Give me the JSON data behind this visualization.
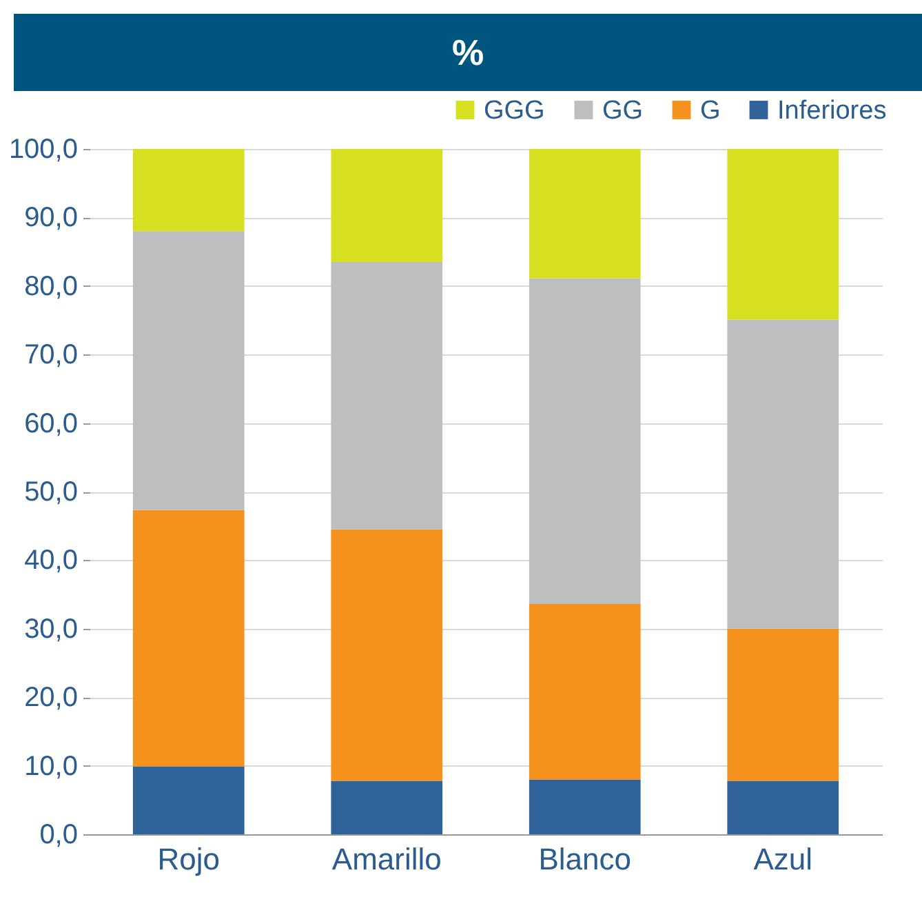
{
  "chart_data": {
    "type": "bar",
    "title": "%",
    "stacked": true,
    "categories": [
      "Rojo",
      "Amarillo",
      "Blanco",
      "Azul"
    ],
    "series": [
      {
        "name": "Inferiores",
        "color": "#2f6299",
        "values": [
          9.9,
          7.8,
          8.0,
          7.8
        ]
      },
      {
        "name": "G",
        "color": "#f5921e",
        "values": [
          37.4,
          36.7,
          25.6,
          22.2
        ]
      },
      {
        "name": "GG",
        "color": "#bdbec0",
        "values": [
          40.7,
          39.0,
          47.5,
          45.1
        ]
      },
      {
        "name": "GGG",
        "color": "#d7df21",
        "values": [
          12.0,
          16.5,
          18.9,
          24.9
        ]
      }
    ],
    "ylim": [
      0,
      100
    ],
    "yticks": [
      {
        "value": 0,
        "label": "0,0"
      },
      {
        "value": 10,
        "label": "10,0"
      },
      {
        "value": 20,
        "label": "20,0"
      },
      {
        "value": 30,
        "label": "30,0"
      },
      {
        "value": 40,
        "label": "40,0"
      },
      {
        "value": 50,
        "label": "50,0"
      },
      {
        "value": 60,
        "label": "60,0"
      },
      {
        "value": 70,
        "label": "70,0"
      },
      {
        "value": 80,
        "label": "80,0"
      },
      {
        "value": 90,
        "label": "90,0"
      },
      {
        "value": 100,
        "label": "100,0"
      }
    ],
    "grid": "y",
    "legend": "top right"
  }
}
